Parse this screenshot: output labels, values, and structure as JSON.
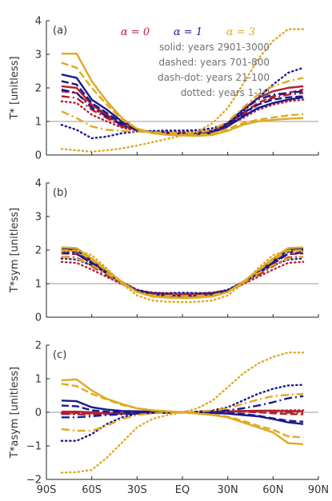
{
  "colors": {
    "a0": "#b5202e",
    "a1": "#1a1a8c",
    "a3": "#e0a91e",
    "ref": "#999999"
  },
  "legend": {
    "alpha_labels": [
      "α = 0",
      "α = 1",
      "α = 3"
    ],
    "lines": [
      "solid: years 2901-3000",
      "dashed: years 701-800",
      "dash-dot: years 21-100",
      "dotted: years 1-10"
    ]
  },
  "x_tick_labels": [
    "90S",
    "60S",
    "30S",
    "EQ",
    "30N",
    "60N",
    "90N"
  ],
  "chart_data": [
    {
      "type": "line",
      "panel_label": "(a)",
      "ylabel": "T*  [unitless]",
      "ylim": [
        0,
        4
      ],
      "xlim": [
        -90,
        90
      ],
      "yticks": [
        "0",
        "1",
        "2",
        "3",
        "4"
      ],
      "ref_line": 1,
      "x": [
        -80,
        -70,
        -60,
        -50,
        -40,
        -30,
        -20,
        -10,
        0,
        10,
        20,
        30,
        40,
        50,
        60,
        70,
        80
      ],
      "series": [
        {
          "alpha": "a0",
          "style": "solid",
          "values": [
            2.05,
            2.0,
            1.5,
            1.2,
            0.9,
            0.75,
            0.68,
            0.65,
            0.64,
            0.63,
            0.7,
            0.95,
            1.35,
            1.7,
            1.9,
            2.0,
            2.05
          ]
        },
        {
          "alpha": "a0",
          "style": "dashed",
          "values": [
            1.9,
            1.85,
            1.45,
            1.15,
            0.88,
            0.74,
            0.68,
            0.66,
            0.65,
            0.65,
            0.72,
            0.92,
            1.25,
            1.55,
            1.75,
            1.85,
            1.95
          ]
        },
        {
          "alpha": "a0",
          "style": "dashdot",
          "values": [
            1.75,
            1.7,
            1.35,
            1.1,
            0.85,
            0.73,
            0.69,
            0.67,
            0.66,
            0.66,
            0.72,
            0.9,
            1.2,
            1.5,
            1.7,
            1.8,
            1.85
          ]
        },
        {
          "alpha": "a0",
          "style": "dotted",
          "values": [
            1.6,
            1.55,
            1.2,
            1.0,
            0.82,
            0.72,
            0.7,
            0.69,
            0.69,
            0.7,
            0.76,
            0.88,
            1.1,
            1.35,
            1.5,
            1.6,
            1.65
          ]
        },
        {
          "alpha": "a1",
          "style": "solid",
          "values": [
            2.4,
            2.3,
            1.65,
            1.35,
            1.0,
            0.78,
            0.66,
            0.62,
            0.6,
            0.6,
            0.66,
            0.85,
            1.15,
            1.4,
            1.55,
            1.65,
            1.72
          ]
        },
        {
          "alpha": "a1",
          "style": "dashed",
          "values": [
            2.2,
            2.1,
            1.55,
            1.25,
            0.95,
            0.76,
            0.67,
            0.63,
            0.62,
            0.62,
            0.68,
            0.88,
            1.25,
            1.5,
            1.65,
            1.72,
            1.75
          ]
        },
        {
          "alpha": "a1",
          "style": "dashdot",
          "values": [
            1.95,
            1.85,
            1.4,
            1.15,
            0.9,
            0.75,
            0.68,
            0.65,
            0.64,
            0.64,
            0.72,
            0.95,
            1.35,
            1.65,
            1.8,
            1.85,
            1.9
          ]
        },
        {
          "alpha": "a1",
          "style": "dotted",
          "values": [
            0.9,
            0.75,
            0.5,
            0.55,
            0.65,
            0.7,
            0.72,
            0.73,
            0.73,
            0.74,
            0.8,
            0.95,
            1.3,
            1.7,
            2.1,
            2.45,
            2.6
          ]
        },
        {
          "alpha": "a3",
          "style": "solid",
          "values": [
            3.02,
            3.02,
            2.2,
            1.6,
            1.1,
            0.78,
            0.65,
            0.6,
            0.58,
            0.57,
            0.6,
            0.72,
            0.9,
            1.0,
            1.05,
            1.08,
            1.1
          ]
        },
        {
          "alpha": "a3",
          "style": "dashed",
          "values": [
            2.75,
            2.6,
            2.0,
            1.5,
            1.05,
            0.78,
            0.67,
            0.62,
            0.6,
            0.6,
            0.64,
            0.78,
            0.95,
            1.05,
            1.12,
            1.18,
            1.22
          ]
        },
        {
          "alpha": "a3",
          "style": "dashdot",
          "values": [
            1.3,
            1.1,
            0.85,
            0.75,
            0.72,
            0.7,
            0.68,
            0.66,
            0.65,
            0.66,
            0.75,
            1.0,
            1.4,
            1.8,
            2.05,
            2.2,
            2.3
          ]
        },
        {
          "alpha": "a3",
          "style": "dotted",
          "values": [
            0.18,
            0.14,
            0.1,
            0.14,
            0.2,
            0.28,
            0.38,
            0.48,
            0.58,
            0.7,
            0.95,
            1.4,
            2.1,
            2.85,
            3.4,
            3.75,
            3.75
          ]
        }
      ]
    },
    {
      "type": "line",
      "panel_label": "(b)",
      "ylabel": "T*sym  [unitless]",
      "ylim": [
        0,
        4
      ],
      "xlim": [
        -90,
        90
      ],
      "yticks": [
        "0",
        "1",
        "2",
        "3",
        "4"
      ],
      "ref_line": 1,
      "x": [
        -80,
        -70,
        -60,
        -50,
        -40,
        -30,
        -20,
        -10,
        0,
        10,
        20,
        30,
        40,
        50,
        60,
        70,
        80
      ],
      "series": [
        {
          "alpha": "a0",
          "style": "solid",
          "values": [
            2.02,
            2.0,
            1.7,
            1.35,
            1.05,
            0.8,
            0.7,
            0.66,
            0.65,
            0.66,
            0.7,
            0.8,
            1.05,
            1.35,
            1.7,
            2.0,
            2.02
          ]
        },
        {
          "alpha": "a0",
          "style": "dashed",
          "values": [
            1.9,
            1.88,
            1.6,
            1.3,
            1.02,
            0.8,
            0.71,
            0.67,
            0.66,
            0.67,
            0.71,
            0.8,
            1.02,
            1.3,
            1.6,
            1.88,
            1.9
          ]
        },
        {
          "alpha": "a0",
          "style": "dashdot",
          "values": [
            1.8,
            1.78,
            1.52,
            1.25,
            1.0,
            0.8,
            0.72,
            0.68,
            0.67,
            0.68,
            0.72,
            0.8,
            1.0,
            1.25,
            1.52,
            1.78,
            1.8
          ]
        },
        {
          "alpha": "a0",
          "style": "dotted",
          "values": [
            1.65,
            1.62,
            1.42,
            1.2,
            0.98,
            0.8,
            0.74,
            0.71,
            0.7,
            0.71,
            0.74,
            0.8,
            0.98,
            1.2,
            1.42,
            1.62,
            1.65
          ]
        },
        {
          "alpha": "a1",
          "style": "solid",
          "values": [
            2.05,
            2.0,
            1.65,
            1.35,
            1.05,
            0.78,
            0.66,
            0.62,
            0.6,
            0.62,
            0.66,
            0.78,
            1.05,
            1.35,
            1.65,
            2.0,
            2.05
          ]
        },
        {
          "alpha": "a1",
          "style": "dashed",
          "values": [
            1.98,
            1.95,
            1.6,
            1.3,
            1.03,
            0.78,
            0.67,
            0.63,
            0.62,
            0.63,
            0.67,
            0.78,
            1.03,
            1.3,
            1.6,
            1.95,
            1.98
          ]
        },
        {
          "alpha": "a1",
          "style": "dashdot",
          "values": [
            1.92,
            1.9,
            1.58,
            1.3,
            1.02,
            0.78,
            0.68,
            0.65,
            0.64,
            0.65,
            0.68,
            0.78,
            1.02,
            1.3,
            1.58,
            1.9,
            1.92
          ]
        },
        {
          "alpha": "a1",
          "style": "dotted",
          "values": [
            1.75,
            1.72,
            1.55,
            1.32,
            1.05,
            0.82,
            0.72,
            0.72,
            0.73,
            0.72,
            0.72,
            0.82,
            1.05,
            1.32,
            1.55,
            1.72,
            1.75
          ]
        },
        {
          "alpha": "a3",
          "style": "solid",
          "values": [
            2.08,
            2.06,
            1.75,
            1.4,
            1.05,
            0.75,
            0.62,
            0.58,
            0.57,
            0.58,
            0.62,
            0.75,
            1.05,
            1.4,
            1.75,
            2.06,
            2.08
          ]
        },
        {
          "alpha": "a3",
          "style": "dashed",
          "values": [
            2.0,
            1.98,
            1.7,
            1.38,
            1.03,
            0.75,
            0.63,
            0.6,
            0.58,
            0.6,
            0.63,
            0.75,
            1.03,
            1.38,
            1.7,
            1.98,
            2.0
          ]
        },
        {
          "alpha": "a3",
          "style": "dashdot",
          "values": [
            1.8,
            1.75,
            1.55,
            1.3,
            1.02,
            0.76,
            0.66,
            0.64,
            0.63,
            0.64,
            0.66,
            0.76,
            1.02,
            1.3,
            1.55,
            1.75,
            1.8
          ]
        },
        {
          "alpha": "a3",
          "style": "dotted",
          "values": [
            1.95,
            2.0,
            1.85,
            1.45,
            1.0,
            0.65,
            0.5,
            0.46,
            0.45,
            0.46,
            0.5,
            0.65,
            1.0,
            1.45,
            1.85,
            2.0,
            1.95
          ]
        }
      ]
    },
    {
      "type": "line",
      "panel_label": "(c)",
      "ylabel": "T*asym  [unitless]",
      "ylim": [
        -2,
        2
      ],
      "xlim": [
        -90,
        90
      ],
      "yticks": [
        "−2",
        "−1",
        "0",
        "1",
        "2"
      ],
      "ref_line": 0,
      "x": [
        -80,
        -70,
        -60,
        -50,
        -40,
        -30,
        -20,
        -10,
        0,
        10,
        20,
        30,
        40,
        50,
        60,
        70,
        80
      ],
      "series": [
        {
          "alpha": "a0",
          "style": "solid",
          "values": [
            0.02,
            0.02,
            0.0,
            -0.03,
            -0.04,
            -0.03,
            -0.02,
            -0.01,
            0.0,
            0.01,
            0.02,
            0.03,
            0.04,
            0.05,
            0.05,
            0.04,
            0.03
          ]
        },
        {
          "alpha": "a0",
          "style": "dashed",
          "values": [
            0.0,
            -0.02,
            -0.04,
            -0.05,
            -0.04,
            -0.03,
            -0.02,
            -0.01,
            0.0,
            0.01,
            0.02,
            0.03,
            0.02,
            0.0,
            -0.03,
            -0.05,
            -0.06
          ]
        },
        {
          "alpha": "a0",
          "style": "dashdot",
          "values": [
            -0.05,
            -0.06,
            -0.07,
            -0.06,
            -0.05,
            -0.03,
            -0.02,
            -0.01,
            0.0,
            0.01,
            0.02,
            0.03,
            0.04,
            0.03,
            0.01,
            -0.01,
            -0.02
          ]
        },
        {
          "alpha": "a0",
          "style": "dotted",
          "values": [
            -0.03,
            -0.04,
            -0.03,
            -0.03,
            -0.02,
            -0.02,
            -0.01,
            0.0,
            0.0,
            0.0,
            0.01,
            0.02,
            0.03,
            0.04,
            0.05,
            0.06,
            0.06
          ]
        },
        {
          "alpha": "a1",
          "style": "solid",
          "values": [
            0.35,
            0.33,
            0.15,
            0.08,
            0.04,
            0.03,
            0.02,
            0.01,
            0.0,
            -0.01,
            -0.02,
            -0.04,
            -0.08,
            -0.12,
            -0.2,
            -0.3,
            -0.35
          ]
        },
        {
          "alpha": "a1",
          "style": "dashed",
          "values": [
            0.2,
            0.18,
            0.06,
            0.02,
            0.01,
            0.0,
            0.0,
            0.0,
            0.0,
            0.0,
            0.0,
            -0.02,
            -0.05,
            -0.1,
            -0.18,
            -0.25,
            -0.28
          ]
        },
        {
          "alpha": "a1",
          "style": "dashdot",
          "values": [
            -0.15,
            -0.15,
            -0.12,
            -0.08,
            -0.06,
            -0.04,
            -0.02,
            -0.01,
            0.0,
            0.01,
            0.03,
            0.06,
            0.12,
            0.2,
            0.3,
            0.42,
            0.48
          ]
        },
        {
          "alpha": "a1",
          "style": "dotted",
          "values": [
            -0.85,
            -0.85,
            -0.65,
            -0.35,
            -0.15,
            -0.05,
            -0.01,
            0.0,
            0.0,
            0.02,
            0.06,
            0.15,
            0.35,
            0.55,
            0.7,
            0.8,
            0.82
          ]
        },
        {
          "alpha": "a3",
          "style": "solid",
          "values": [
            0.95,
            0.98,
            0.65,
            0.4,
            0.25,
            0.12,
            0.06,
            0.03,
            0.0,
            -0.04,
            -0.08,
            -0.15,
            -0.3,
            -0.45,
            -0.6,
            -0.92,
            -0.95
          ]
        },
        {
          "alpha": "a3",
          "style": "dashed",
          "values": [
            0.85,
            0.78,
            0.55,
            0.38,
            0.22,
            0.12,
            0.06,
            0.03,
            0.0,
            -0.03,
            -0.07,
            -0.13,
            -0.25,
            -0.4,
            -0.52,
            -0.72,
            -0.75
          ]
        },
        {
          "alpha": "a3",
          "style": "dashdot",
          "values": [
            -0.5,
            -0.55,
            -0.55,
            -0.4,
            -0.2,
            -0.08,
            -0.03,
            -0.01,
            0.0,
            0.02,
            0.06,
            0.12,
            0.25,
            0.38,
            0.48,
            0.52,
            0.55
          ]
        },
        {
          "alpha": "a3",
          "style": "dotted",
          "values": [
            -1.8,
            -1.78,
            -1.72,
            -1.35,
            -0.9,
            -0.45,
            -0.2,
            -0.08,
            0.0,
            0.12,
            0.35,
            0.75,
            1.15,
            1.45,
            1.65,
            1.78,
            1.78
          ]
        }
      ]
    }
  ]
}
